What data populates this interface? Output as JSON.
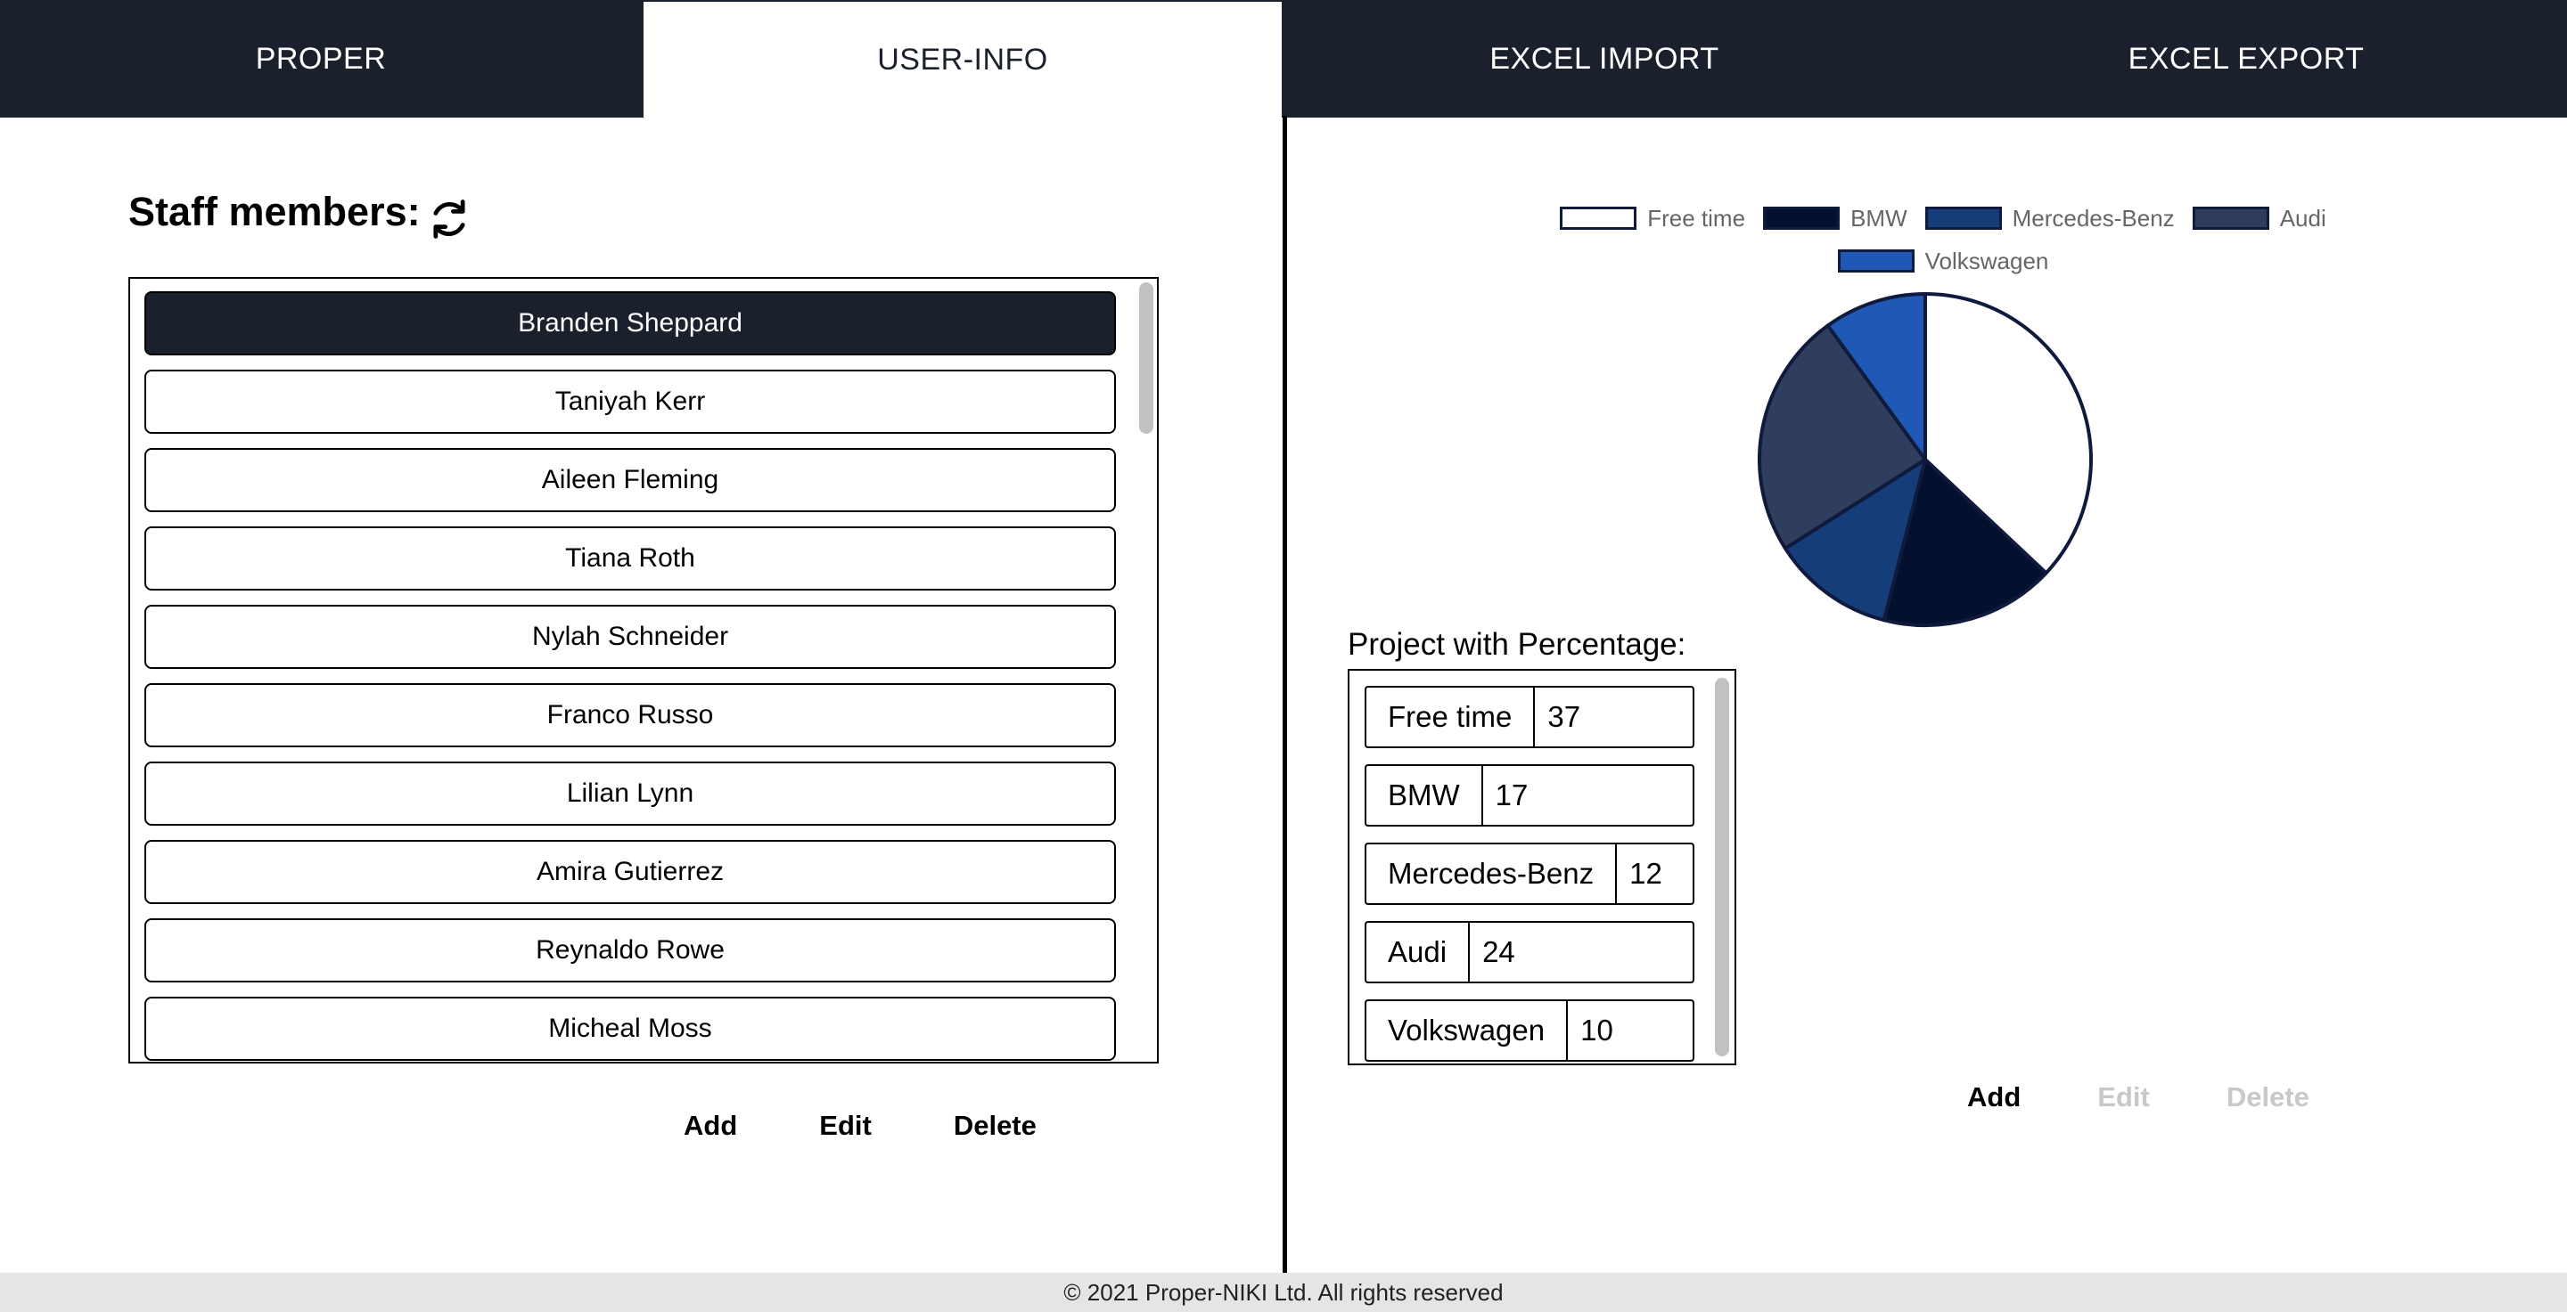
{
  "nav": {
    "tabs": [
      {
        "label": "PROPER"
      },
      {
        "label": "USER-INFO"
      },
      {
        "label": "EXCEL IMPORT"
      },
      {
        "label": "EXCEL EXPORT"
      }
    ],
    "active_tab": "USER-INFO"
  },
  "staff": {
    "title": "Staff members:",
    "refresh_icon": "refresh-icon",
    "members": [
      "Branden Sheppard",
      "Taniyah Kerr",
      "Aileen Fleming",
      "Tiana Roth",
      "Nylah Schneider",
      "Franco Russo",
      "Lilian Lynn",
      "Amira Gutierrez",
      "Reynaldo Rowe",
      "Micheal Moss"
    ],
    "selected": "Branden Sheppard",
    "actions": {
      "add": "Add",
      "edit": "Edit",
      "delete": "Delete"
    }
  },
  "projects": {
    "title": "Project with Percentage:",
    "rows": [
      {
        "name": "Free time",
        "value": "37"
      },
      {
        "name": "BMW",
        "value": "17"
      },
      {
        "name": "Mercedes-Benz",
        "value": "12"
      },
      {
        "name": "Audi",
        "value": "24"
      },
      {
        "name": "Volkswagen",
        "value": "10"
      }
    ],
    "actions": {
      "add": "Add",
      "edit": "Edit",
      "delete": "Delete"
    }
  },
  "chart_data": {
    "type": "pie",
    "title": "",
    "categories": [
      "Free time",
      "BMW",
      "Mercedes-Benz",
      "Audi",
      "Volkswagen"
    ],
    "values": [
      37,
      17,
      12,
      24,
      10
    ],
    "colors": [
      "#ffffff",
      "#03112e",
      "#143d7a",
      "#2f3d5e",
      "#2058b5"
    ],
    "border_color": "#0f1a3c",
    "legend": "top"
  },
  "footer": {
    "text": "© 2021 Proper-NIKI Ltd. All rights reserved"
  }
}
